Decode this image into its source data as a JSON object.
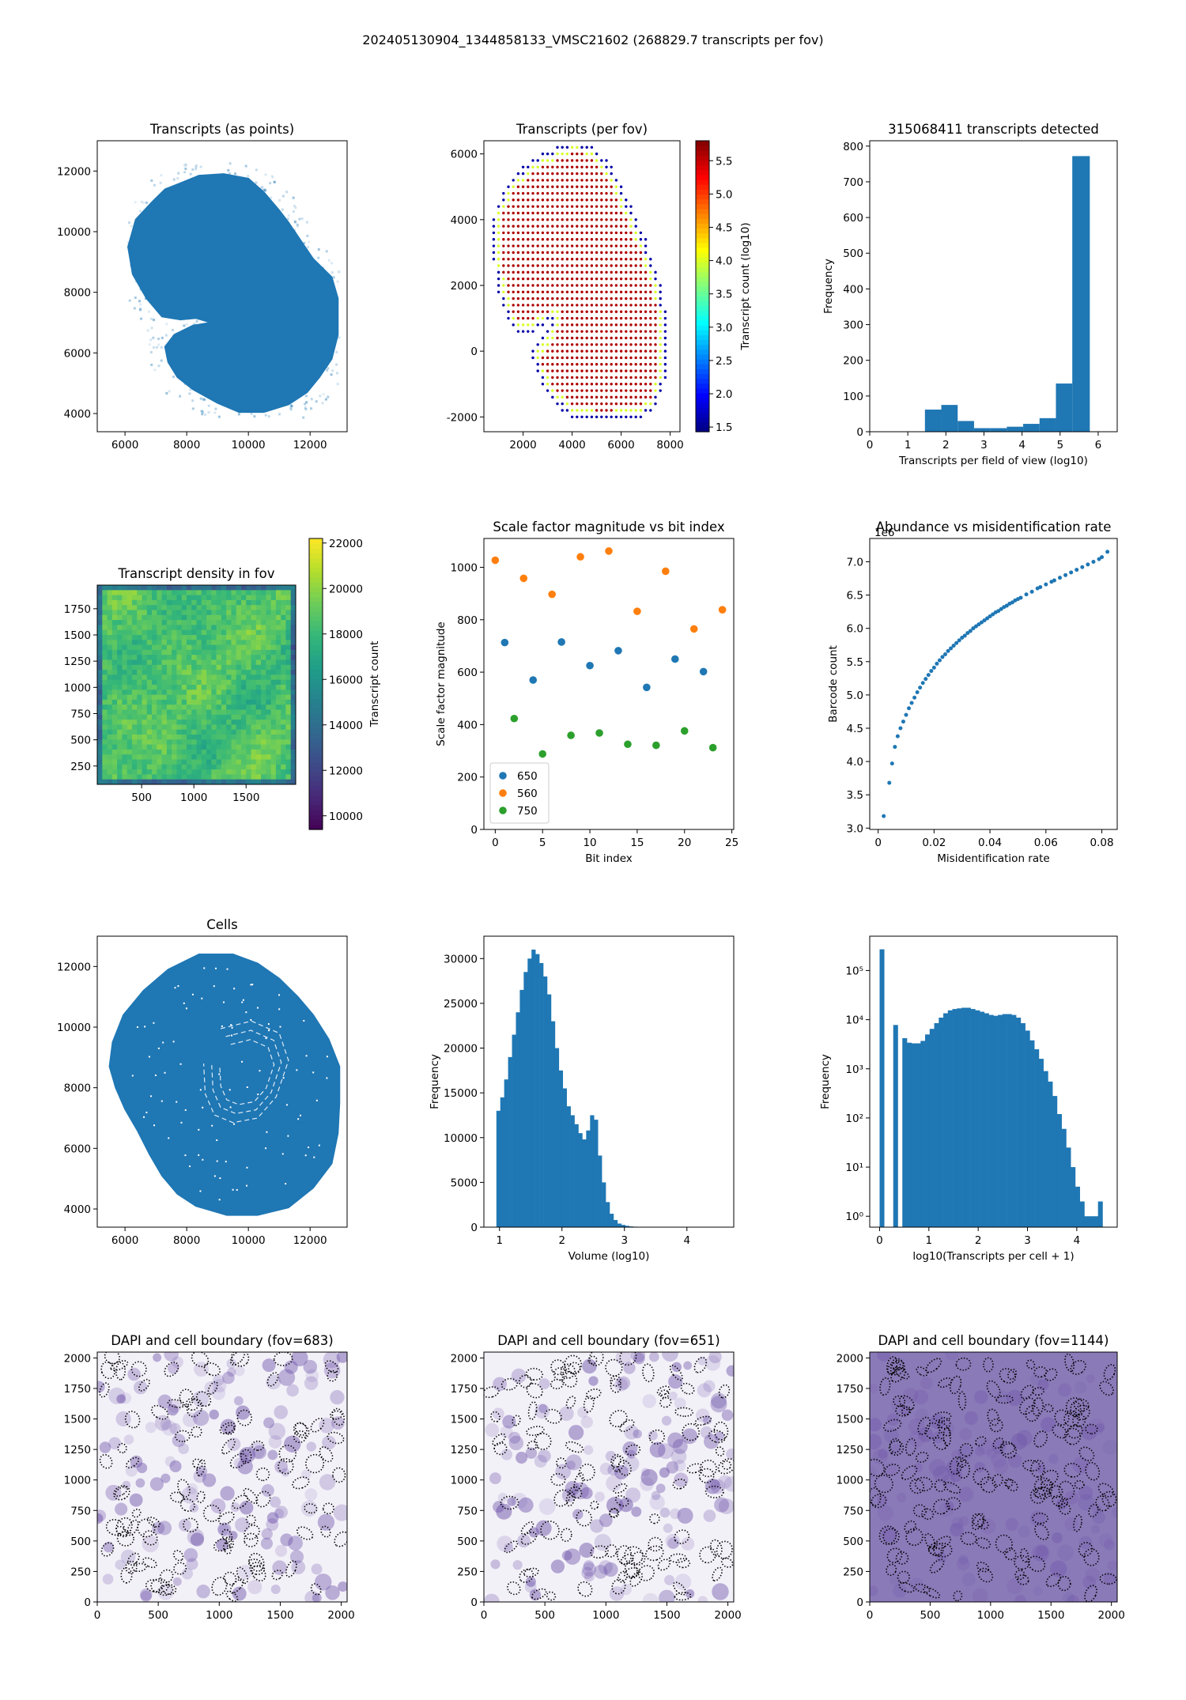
{
  "suptitle": "202405130904_1344858133_VMSC21602 (268829.7 transcripts per fov)",
  "colors": {
    "blue": "#1f77b4",
    "orange": "#ff7f0e",
    "green": "#2ca02c",
    "dapi": "#6a4fa8"
  },
  "chart_data": [
    {
      "id": "transcripts-points",
      "type": "scatter",
      "title": "Transcripts (as points)",
      "xlabel": "",
      "ylabel": "",
      "xlim": [
        5100,
        13200
      ],
      "ylim": [
        3400,
        13000
      ],
      "xticks": [
        6000,
        8000,
        10000,
        12000
      ],
      "yticks": [
        4000,
        6000,
        8000,
        10000,
        12000
      ],
      "note_shape": "dense tissue section of points (blue) with faint scattered outliers",
      "outline": [
        [
          7800,
          11600
        ],
        [
          8400,
          11850
        ],
        [
          9200,
          11900
        ],
        [
          10000,
          11750
        ],
        [
          10500,
          11300
        ],
        [
          11000,
          10700
        ],
        [
          11300,
          10300
        ],
        [
          11700,
          9700
        ],
        [
          12100,
          9100
        ],
        [
          12700,
          8500
        ],
        [
          12900,
          7800
        ],
        [
          12900,
          6600
        ],
        [
          12700,
          5800
        ],
        [
          12300,
          5200
        ],
        [
          11900,
          4700
        ],
        [
          11300,
          4300
        ],
        [
          10500,
          4050
        ],
        [
          9700,
          4050
        ],
        [
          9000,
          4350
        ],
        [
          8200,
          4800
        ],
        [
          7700,
          5200
        ],
        [
          7400,
          5700
        ],
        [
          7300,
          6200
        ],
        [
          7600,
          6600
        ],
        [
          8200,
          6900
        ],
        [
          8800,
          7000
        ],
        [
          8300,
          7150
        ],
        [
          7800,
          7100
        ],
        [
          7200,
          7200
        ],
        [
          6700,
          7800
        ],
        [
          6250,
          8600
        ],
        [
          6100,
          9500
        ],
        [
          6350,
          10400
        ],
        [
          6900,
          11000
        ],
        [
          7300,
          11400
        ]
      ],
      "inner_notch": [
        [
          8600,
          7000
        ],
        [
          9100,
          6650
        ],
        [
          9600,
          6300
        ],
        [
          9400,
          5900
        ],
        [
          8900,
          5900
        ],
        [
          8600,
          6200
        ],
        [
          8450,
          6650
        ]
      ]
    },
    {
      "id": "transcripts-per-fov",
      "type": "scatter",
      "title": "Transcripts (per fov)",
      "xlabel": "",
      "ylabel": "",
      "xlim": [
        400,
        8400
      ],
      "ylim": [
        -2450,
        6400
      ],
      "xticks": [
        2000,
        4000,
        6000,
        8000
      ],
      "yticks": [
        -2000,
        0,
        2000,
        4000,
        6000
      ],
      "colorbar": {
        "label": "Transcript count (log10)",
        "min": 1.43,
        "max": 5.8,
        "ticks": [
          1.5,
          2.0,
          2.5,
          3.0,
          3.5,
          4.0,
          4.5,
          5.0,
          5.5
        ],
        "colormap": "jet"
      },
      "grid_step": 200,
      "outline": [
        [
          3300,
          6000
        ],
        [
          4100,
          6250
        ],
        [
          4700,
          6100
        ],
        [
          5500,
          5500
        ],
        [
          6300,
          4200
        ],
        [
          6900,
          3200
        ],
        [
          7400,
          2100
        ],
        [
          7700,
          1000
        ],
        [
          7700,
          -700
        ],
        [
          7300,
          -1600
        ],
        [
          6600,
          -1900
        ],
        [
          5200,
          -2000
        ],
        [
          3900,
          -1800
        ],
        [
          3200,
          -1300
        ],
        [
          2700,
          -600
        ],
        [
          2500,
          -100
        ],
        [
          2900,
          300
        ],
        [
          3200,
          600
        ],
        [
          3400,
          1100
        ],
        [
          2900,
          1000
        ],
        [
          2500,
          800
        ],
        [
          2000,
          600
        ],
        [
          1500,
          1000
        ],
        [
          1100,
          2000
        ],
        [
          900,
          3200
        ],
        [
          1000,
          4200
        ],
        [
          1500,
          5000
        ],
        [
          2400,
          5700
        ]
      ],
      "bright_value": 5.6,
      "edge_value": 4.0,
      "outer_value": 1.6
    },
    {
      "id": "transcripts-histogram",
      "type": "bar",
      "title": "315068411 transcripts detected",
      "xlabel": "Transcripts per field of view (log10)",
      "ylabel": "Frequency",
      "xlim": [
        0,
        6.5
      ],
      "ylim": [
        0,
        815
      ],
      "xticks": [
        0,
        1,
        2,
        3,
        4,
        5,
        6
      ],
      "yticks": [
        0,
        100,
        200,
        300,
        400,
        500,
        600,
        700,
        800
      ],
      "bins": [
        [
          1.45,
          1.88,
          62
        ],
        [
          1.88,
          2.31,
          75
        ],
        [
          2.31,
          2.74,
          30
        ],
        [
          2.74,
          3.17,
          10
        ],
        [
          3.17,
          3.6,
          10
        ],
        [
          3.6,
          4.03,
          14
        ],
        [
          4.03,
          4.46,
          22
        ],
        [
          4.46,
          4.89,
          38
        ],
        [
          4.89,
          5.32,
          135
        ],
        [
          5.32,
          5.78,
          772
        ]
      ]
    },
    {
      "id": "density-heatmap",
      "type": "heatmap",
      "title": "Transcript density in fov",
      "xlabel": "",
      "ylabel": "",
      "xlim": [
        75,
        1975
      ],
      "ylim": [
        75,
        1975
      ],
      "xticks": [
        500,
        1000,
        1500
      ],
      "yticks": [
        250,
        500,
        750,
        1000,
        1250,
        1500,
        1750
      ],
      "colorbar": {
        "label": "Transcript count",
        "min": 9400,
        "max": 22200,
        "ticks": [
          10000,
          12000,
          14000,
          16000,
          18000,
          20000,
          22000
        ],
        "colormap": "viridis"
      },
      "typical_value": 18500,
      "variation": 1800
    },
    {
      "id": "scale-factor",
      "type": "scatter",
      "title": "Scale factor magnitude vs bit index",
      "xlabel": "Bit index",
      "ylabel": "Scale factor magnitude",
      "xlim": [
        -1.2,
        25.2
      ],
      "ylim": [
        0,
        1110
      ],
      "xticks": [
        0,
        5,
        10,
        15,
        20,
        25
      ],
      "yticks": [
        0,
        200,
        400,
        600,
        800,
        1000
      ],
      "legend": "lower left",
      "series": [
        {
          "name": "650",
          "x": [
            1,
            4,
            7,
            10,
            13,
            16,
            19,
            22
          ],
          "y": [
            713,
            570,
            715,
            625,
            682,
            542,
            650,
            602
          ]
        },
        {
          "name": "560",
          "x": [
            0,
            3,
            6,
            9,
            12,
            15,
            18,
            21,
            24
          ],
          "y": [
            1027,
            958,
            897,
            1040,
            1062,
            832,
            985,
            765,
            838
          ]
        },
        {
          "name": "750",
          "x": [
            2,
            5,
            8,
            11,
            14,
            17,
            20,
            23
          ],
          "y": [
            423,
            288,
            359,
            368,
            325,
            321,
            376,
            312
          ]
        }
      ]
    },
    {
      "id": "abundance",
      "type": "scatter",
      "title": "Abundance vs misidentification rate",
      "xlabel": "Misidentification rate",
      "ylabel": "Barcode count",
      "offset_label": "1e6",
      "xlim": [
        -0.003,
        0.0855
      ],
      "ylim": [
        2.98,
        7.35
      ],
      "xticks": [
        0.0,
        0.02,
        0.04,
        0.06,
        0.08
      ],
      "ytick_labels": [
        "3.0",
        "3.5",
        "4.0",
        "4.5",
        "5.0",
        "5.5",
        "6.0",
        "6.5",
        "7.0"
      ],
      "yticks": [
        3.0,
        3.5,
        4.0,
        4.5,
        5.0,
        5.5,
        6.0,
        6.5,
        7.0
      ],
      "x": [
        0.002,
        0.004,
        0.005,
        0.006,
        0.007,
        0.008,
        0.009,
        0.01,
        0.011,
        0.012,
        0.013,
        0.014,
        0.015,
        0.016,
        0.017,
        0.018,
        0.019,
        0.02,
        0.021,
        0.022,
        0.023,
        0.024,
        0.025,
        0.026,
        0.027,
        0.028,
        0.029,
        0.03,
        0.031,
        0.032,
        0.033,
        0.034,
        0.035,
        0.036,
        0.037,
        0.038,
        0.039,
        0.04,
        0.041,
        0.042,
        0.043,
        0.044,
        0.045,
        0.046,
        0.047,
        0.048,
        0.049,
        0.05,
        0.051,
        0.053,
        0.055,
        0.057,
        0.058,
        0.06,
        0.062,
        0.063,
        0.065,
        0.067,
        0.069,
        0.071,
        0.073,
        0.075,
        0.077,
        0.079,
        0.08,
        0.082
      ],
      "y": [
        3.18,
        3.68,
        3.97,
        4.22,
        4.38,
        4.5,
        4.6,
        4.7,
        4.8,
        4.88,
        4.96,
        5.04,
        5.11,
        5.18,
        5.24,
        5.3,
        5.36,
        5.41,
        5.47,
        5.52,
        5.57,
        5.61,
        5.66,
        5.7,
        5.74,
        5.78,
        5.82,
        5.86,
        5.89,
        5.93,
        5.96,
        6.0,
        6.03,
        6.06,
        6.09,
        6.12,
        6.15,
        6.18,
        6.21,
        6.24,
        6.26,
        6.29,
        6.32,
        6.34,
        6.37,
        6.39,
        6.42,
        6.44,
        6.46,
        6.51,
        6.55,
        6.6,
        6.62,
        6.66,
        6.7,
        6.72,
        6.76,
        6.8,
        6.84,
        6.88,
        6.92,
        6.96,
        7.0,
        7.04,
        7.07,
        7.15
      ]
    },
    {
      "id": "cells",
      "type": "scatter",
      "title": "Cells",
      "xlabel": "",
      "ylabel": "",
      "xlim": [
        5100,
        13200
      ],
      "ylim": [
        3400,
        13000
      ],
      "xticks": [
        6000,
        8000,
        10000,
        12000
      ],
      "yticks": [
        4000,
        6000,
        8000,
        10000,
        12000
      ],
      "outline": [
        [
          8400,
          12400
        ],
        [
          9500,
          12400
        ],
        [
          10300,
          12100
        ],
        [
          11000,
          11600
        ],
        [
          11600,
          11000
        ],
        [
          12100,
          10400
        ],
        [
          12600,
          9600
        ],
        [
          12950,
          8700
        ],
        [
          12950,
          7500
        ],
        [
          12900,
          6500
        ],
        [
          12700,
          5500
        ],
        [
          12100,
          4700
        ],
        [
          11300,
          4050
        ],
        [
          10300,
          3800
        ],
        [
          9300,
          3800
        ],
        [
          8300,
          4100
        ],
        [
          7700,
          4500
        ],
        [
          7200,
          5100
        ],
        [
          6800,
          5800
        ],
        [
          6400,
          6600
        ],
        [
          6000,
          7300
        ],
        [
          5700,
          8000
        ],
        [
          5500,
          8700
        ],
        [
          5600,
          9500
        ],
        [
          5950,
          10400
        ],
        [
          6600,
          11200
        ],
        [
          7400,
          11900
        ]
      ],
      "gaps": [
        [
          [
            9100,
            9950
          ],
          [
            10100,
            10200
          ],
          [
            11000,
            9800
          ],
          [
            11300,
            8900
          ],
          [
            10900,
            7700
          ],
          [
            10300,
            7000
          ],
          [
            9500,
            6850
          ],
          [
            8900,
            7100
          ],
          [
            8600,
            7800
          ],
          [
            8550,
            8800
          ]
        ]
      ]
    },
    {
      "id": "volume-histogram",
      "type": "bar",
      "title": "",
      "xlabel": "Volume (log10)",
      "ylabel": "Frequency",
      "xlim": [
        0.75,
        4.75
      ],
      "ylim": [
        0,
        32500
      ],
      "xticks": [
        1,
        2,
        3,
        4
      ],
      "yticks": [
        0,
        5000,
        10000,
        15000,
        20000,
        25000,
        30000
      ],
      "bin_start": 0.95,
      "bin_width": 0.0625,
      "values": [
        13000,
        14500,
        16500,
        19000,
        21500,
        24000,
        26500,
        28500,
        30000,
        31000,
        30500,
        29500,
        28000,
        26000,
        23000,
        20000,
        17500,
        15500,
        13500,
        12500,
        11500,
        10500,
        9800,
        10800,
        12500,
        12000,
        8000,
        5000,
        2800,
        1500,
        800,
        400,
        250,
        150,
        80,
        50,
        30,
        15,
        10,
        5
      ]
    },
    {
      "id": "transcripts-per-cell",
      "type": "bar",
      "title": "",
      "xlabel": "log10(Transcripts per cell + 1)",
      "ylabel": "Frequency",
      "log_y": true,
      "xlim": [
        -0.2,
        4.82
      ],
      "ylim": [
        0.6,
        500000
      ],
      "xticks": [
        0,
        1,
        2,
        3,
        4
      ],
      "yticks": [
        1,
        10,
        100,
        1000,
        10000,
        100000
      ],
      "ytick_labels": [
        "10⁰",
        "10¹",
        "10²",
        "10³",
        "10⁴",
        "10⁵"
      ],
      "bin_start": 0.0,
      "bin_width": 0.0923,
      "values": [
        270000,
        0,
        0,
        7800,
        0,
        4200,
        3400,
        3300,
        3300,
        3700,
        5000,
        6500,
        8500,
        11000,
        13500,
        15500,
        16500,
        17000,
        17500,
        17500,
        16500,
        15500,
        14500,
        13500,
        12500,
        12000,
        12500,
        13000,
        13000,
        12500,
        11000,
        8500,
        6000,
        3800,
        2500,
        1600,
        900,
        550,
        280,
        120,
        60,
        25,
        10,
        4,
        2,
        1,
        1,
        1,
        2
      ]
    },
    {
      "id": "dapi-683",
      "type": "heatmap",
      "title": "DAPI and cell boundary (fov=683)",
      "xlabel": "",
      "ylabel": "",
      "xlim": [
        0,
        2048
      ],
      "ylim": [
        0,
        2048
      ],
      "xticks": [
        0,
        500,
        1000,
        1500,
        2000
      ],
      "yticks": [
        0,
        250,
        500,
        750,
        1000,
        1250,
        1500,
        1750,
        2000
      ],
      "background": "light",
      "seed": 683
    },
    {
      "id": "dapi-651",
      "type": "heatmap",
      "title": "DAPI and cell boundary (fov=651)",
      "xlabel": "",
      "ylabel": "",
      "xlim": [
        0,
        2048
      ],
      "ylim": [
        0,
        2048
      ],
      "xticks": [
        0,
        500,
        1000,
        1500,
        2000
      ],
      "yticks": [
        0,
        250,
        500,
        750,
        1000,
        1250,
        1500,
        1750,
        2000
      ],
      "background": "light",
      "seed": 651
    },
    {
      "id": "dapi-1144",
      "type": "heatmap",
      "title": "DAPI and cell boundary (fov=1144)",
      "xlabel": "",
      "ylabel": "",
      "xlim": [
        0,
        2048
      ],
      "ylim": [
        0,
        2048
      ],
      "xticks": [
        0,
        500,
        1000,
        1500,
        2000
      ],
      "yticks": [
        0,
        250,
        500,
        750,
        1000,
        1250,
        1500,
        1750,
        2000
      ],
      "background": "dark",
      "seed": 1144
    }
  ]
}
